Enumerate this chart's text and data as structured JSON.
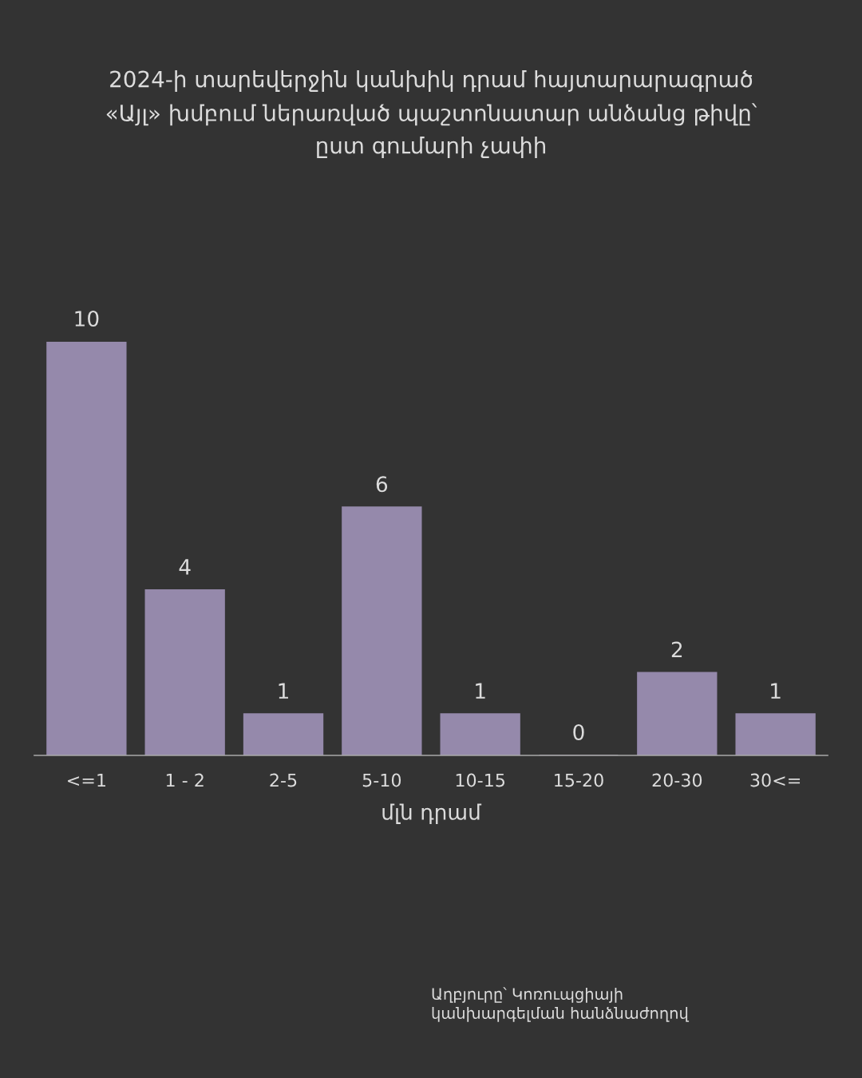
{
  "chart_data": {
    "type": "bar",
    "title": "2024-ի տարեվերջին կանխիկ դրամ հայտարարագրած\n«Այլ» խմբում ներառված պաշտոնատար անձանց թիվը՝\nըստ գումարի չափի",
    "xlabel": "մլն դրամ",
    "categories": [
      "<=1",
      "1 - 2",
      "2-5",
      "5-10",
      "10-15",
      "15-20",
      "20-30",
      "30<="
    ],
    "values": [
      10,
      4,
      1,
      6,
      1,
      0,
      2,
      1
    ],
    "color": "#9589ab",
    "data_labels": true,
    "grid": false,
    "legend": false,
    "tick_labels": "x",
    "annotations": [
      "Աղբյուրը՝ Կոռուպցիայի\nկանխարգելման հանձնաժողով"
    ]
  }
}
